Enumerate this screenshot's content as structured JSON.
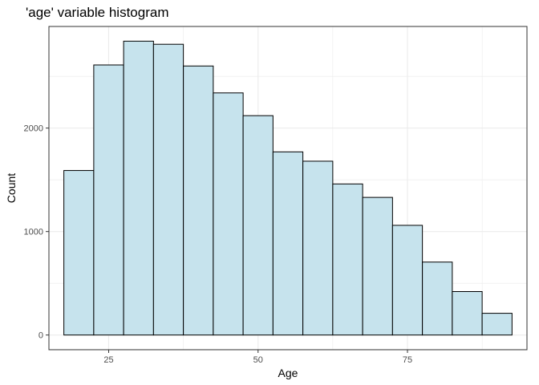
{
  "chart_data": {
    "type": "bar",
    "title": "'age' variable histogram",
    "xlabel": "Age",
    "ylabel": "Count",
    "bin_width": 5,
    "bins": [
      {
        "start": 17.5,
        "end": 22.5,
        "count": 1590
      },
      {
        "start": 22.5,
        "end": 27.5,
        "count": 2610
      },
      {
        "start": 27.5,
        "end": 32.5,
        "count": 2840
      },
      {
        "start": 32.5,
        "end": 37.5,
        "count": 2810
      },
      {
        "start": 37.5,
        "end": 42.5,
        "count": 2600
      },
      {
        "start": 42.5,
        "end": 47.5,
        "count": 2340
      },
      {
        "start": 47.5,
        "end": 52.5,
        "count": 2120
      },
      {
        "start": 52.5,
        "end": 57.5,
        "count": 1770
      },
      {
        "start": 57.5,
        "end": 62.5,
        "count": 1680
      },
      {
        "start": 62.5,
        "end": 67.5,
        "count": 1460
      },
      {
        "start": 67.5,
        "end": 72.5,
        "count": 1330
      },
      {
        "start": 72.5,
        "end": 77.5,
        "count": 1060
      },
      {
        "start": 77.5,
        "end": 82.5,
        "count": 705
      },
      {
        "start": 82.5,
        "end": 87.5,
        "count": 420
      },
      {
        "start": 87.5,
        "end": 92.5,
        "count": 210
      }
    ],
    "xlim": [
      15.0,
      95.0
    ],
    "ylim": [
      -142,
      2982
    ],
    "x_ticks": [
      25,
      50,
      75
    ],
    "y_ticks": [
      0,
      1000,
      2000
    ],
    "x_tick_labels": [
      "25",
      "50",
      "75"
    ],
    "y_tick_labels": [
      "0",
      "1000",
      "2000"
    ],
    "grid": true,
    "bar_fill": "#c6e3ed",
    "bar_stroke": "#000000",
    "grid_color": "#ebebeb",
    "panel_border": "#333333"
  }
}
